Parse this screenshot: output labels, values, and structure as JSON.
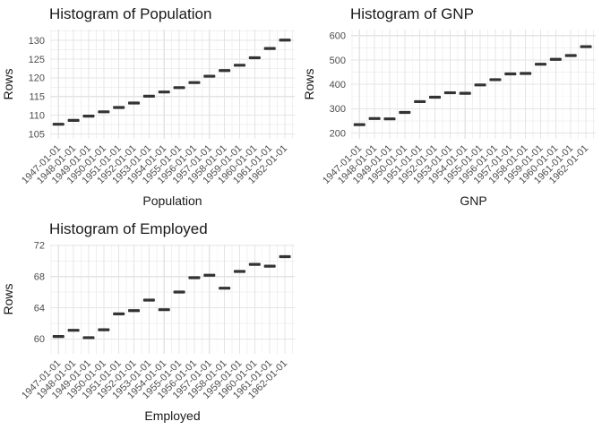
{
  "figure": {
    "background": "#ffffff",
    "layout": "2x2 grid, bottom-right panel empty"
  },
  "colors": {
    "background": "#ffffff",
    "mark": "#333333",
    "grid_major": "#e4e4e4",
    "grid_minor": "#f0f0f0",
    "tick_label": "#4d4d4d",
    "text": "#1a1a1a"
  },
  "chart_data": [
    {
      "type": "scatter",
      "marker": "horizontal-dash",
      "title": "Histogram of Population",
      "xlabel": "Population",
      "ylabel": "Rows",
      "x": [
        "1947-01-01",
        "1948-01-01",
        "1949-01-01",
        "1950-01-01",
        "1951-01-01",
        "1952-01-01",
        "1953-01-01",
        "1954-01-01",
        "1955-01-01",
        "1956-01-01",
        "1957-01-01",
        "1958-01-01",
        "1959-01-01",
        "1960-01-01",
        "1961-01-01",
        "1962-01-01"
      ],
      "values": [
        107.608,
        108.632,
        109.773,
        110.929,
        112.075,
        113.27,
        115.094,
        116.219,
        117.388,
        118.734,
        120.445,
        121.95,
        123.366,
        125.368,
        127.852,
        130.081
      ],
      "yticks": [
        105,
        110,
        115,
        120,
        125,
        130
      ],
      "ylim": [
        103.7,
        132.9
      ],
      "xlim_years": [
        1946.45,
        1962.65
      ],
      "grid": "major+minor",
      "legend": "none"
    },
    {
      "type": "scatter",
      "marker": "horizontal-dash",
      "title": "Histogram of GNP",
      "xlabel": "GNP",
      "ylabel": "Rows",
      "x": [
        "1947-01-01",
        "1948-01-01",
        "1949-01-01",
        "1950-01-01",
        "1951-01-01",
        "1952-01-01",
        "1953-01-01",
        "1954-01-01",
        "1955-01-01",
        "1956-01-01",
        "1957-01-01",
        "1958-01-01",
        "1959-01-01",
        "1960-01-01",
        "1961-01-01",
        "1962-01-01"
      ],
      "values": [
        234.289,
        259.426,
        258.054,
        284.599,
        328.975,
        346.999,
        365.385,
        363.112,
        397.469,
        419.18,
        442.769,
        444.546,
        482.704,
        502.601,
        518.173,
        554.894
      ],
      "yticks": [
        200,
        300,
        400,
        500,
        600
      ],
      "ylim": [
        176,
        625
      ],
      "xlim_years": [
        1946.45,
        1962.65
      ],
      "grid": "major+minor",
      "legend": "none"
    },
    {
      "type": "scatter",
      "marker": "horizontal-dash",
      "title": "Histogram of Employed",
      "xlabel": "Employed",
      "ylabel": "Rows",
      "x": [
        "1947-01-01",
        "1948-01-01",
        "1949-01-01",
        "1950-01-01",
        "1951-01-01",
        "1952-01-01",
        "1953-01-01",
        "1954-01-01",
        "1955-01-01",
        "1956-01-01",
        "1957-01-01",
        "1958-01-01",
        "1959-01-01",
        "1960-01-01",
        "1961-01-01",
        "1962-01-01"
      ],
      "values": [
        60.323,
        61.122,
        60.171,
        61.187,
        63.221,
        63.639,
        64.989,
        63.761,
        66.019,
        67.857,
        68.169,
        66.513,
        68.655,
        69.564,
        69.331,
        70.551
      ],
      "yticks": [
        60,
        64,
        68,
        72
      ],
      "ylim": [
        58.1,
        72.1
      ],
      "xlim_years": [
        1946.45,
        1962.65
      ],
      "grid": "major+minor",
      "legend": "none"
    }
  ]
}
